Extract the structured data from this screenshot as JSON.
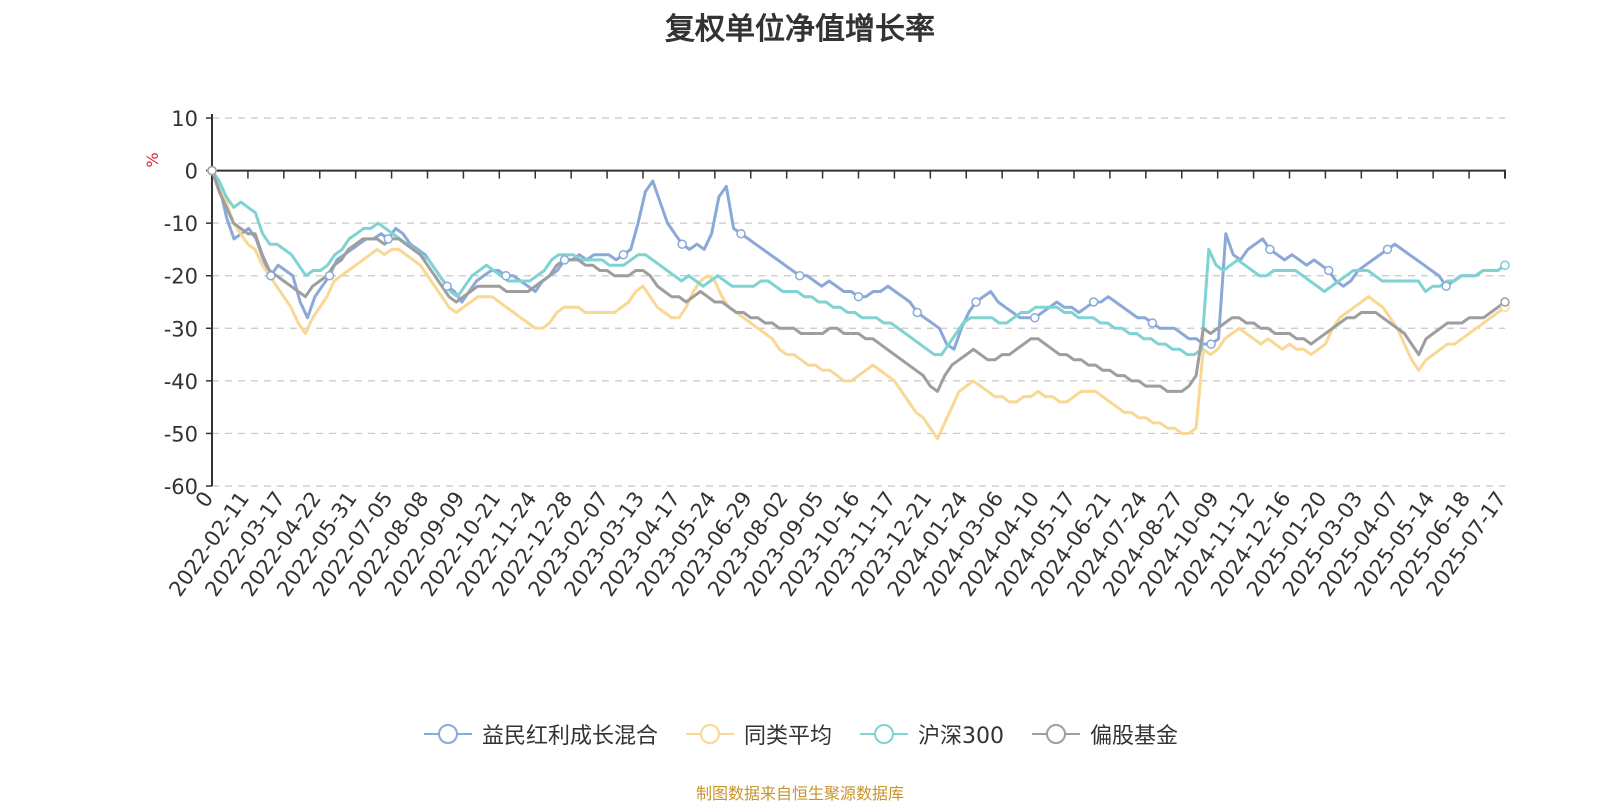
{
  "chart_data": {
    "type": "line",
    "title": "复权单位净值增长率",
    "ylabel": "%",
    "ylim": [
      -60,
      10
    ],
    "yticks": [
      10,
      0,
      -10,
      -20,
      -30,
      -40,
      -50,
      -60
    ],
    "x_origin_label": "0",
    "xticks": [
      "2022-02-11",
      "2022-03-17",
      "2022-04-22",
      "2022-05-31",
      "2022-07-05",
      "2022-08-08",
      "2022-09-09",
      "2022-10-21",
      "2022-11-24",
      "2022-12-28",
      "2023-02-07",
      "2023-03-13",
      "2023-04-17",
      "2023-05-24",
      "2023-06-29",
      "2023-08-02",
      "2023-09-05",
      "2023-10-16",
      "2023-11-17",
      "2023-12-21",
      "2024-01-24",
      "2024-03-06",
      "2024-04-10",
      "2024-05-17",
      "2024-06-21",
      "2024-07-24",
      "2024-08-27",
      "2024-10-09",
      "2024-11-12",
      "2024-12-16",
      "2025-01-20",
      "2025-03-03",
      "2025-04-07",
      "2025-05-14",
      "2025-06-18",
      "2025-07-17"
    ],
    "grid": true,
    "legend_position": "bottom",
    "series": [
      {
        "name": "益民红利成长混合",
        "color": "#8aa9d8",
        "values": [
          0,
          -3,
          -9,
          -13,
          -12,
          -11,
          -13,
          -17,
          -20,
          -18,
          -19,
          -20,
          -25,
          -28,
          -24,
          -22,
          -20,
          -17,
          -16,
          -15,
          -14,
          -13,
          -13,
          -12,
          -13,
          -11,
          -12,
          -14,
          -15,
          -16,
          -18,
          -20,
          -22,
          -23,
          -25,
          -23,
          -21,
          -20,
          -19,
          -19,
          -20,
          -20,
          -21,
          -22,
          -23,
          -21,
          -20,
          -19,
          -17,
          -17,
          -16,
          -17,
          -16,
          -16,
          -16,
          -17,
          -16,
          -15,
          -10,
          -4,
          -2,
          -6,
          -10,
          -12,
          -14,
          -15,
          -14,
          -15,
          -12,
          -5,
          -3,
          -11,
          -12,
          -13,
          -14,
          -15,
          -16,
          -17,
          -18,
          -19,
          -20,
          -20,
          -21,
          -22,
          -21,
          -22,
          -23,
          -23,
          -24,
          -24,
          -23,
          -23,
          -22,
          -23,
          -24,
          -25,
          -27,
          -28,
          -29,
          -30,
          -33,
          -34,
          -30,
          -27,
          -25,
          -24,
          -23,
          -25,
          -26,
          -27,
          -28,
          -28,
          -28,
          -27,
          -26,
          -25,
          -26,
          -26,
          -27,
          -26,
          -25,
          -25,
          -24,
          -25,
          -26,
          -27,
          -28,
          -28,
          -29,
          -30,
          -30,
          -30,
          -31,
          -32,
          -32,
          -33,
          -33,
          -32,
          -12,
          -16,
          -17,
          -15,
          -14,
          -13,
          -15,
          -16,
          -17,
          -16,
          -17,
          -18,
          -17,
          -18,
          -19,
          -21,
          -22,
          -21,
          -19,
          -18,
          -17,
          -16,
          -15,
          -14,
          -15,
          -16,
          -17,
          -18,
          -19,
          -20,
          -22,
          -21,
          -20,
          -20,
          -20,
          -19,
          -19,
          -19,
          -18
        ]
      },
      {
        "name": "同类平均",
        "color": "#f9d895",
        "values": [
          0,
          -2,
          -6,
          -10,
          -12,
          -14,
          -15,
          -18,
          -20,
          -22,
          -24,
          -26,
          -29,
          -31,
          -28,
          -26,
          -24,
          -21,
          -20,
          -19,
          -18,
          -17,
          -16,
          -15,
          -16,
          -15,
          -15,
          -16,
          -17,
          -18,
          -20,
          -22,
          -24,
          -26,
          -27,
          -26,
          -25,
          -24,
          -24,
          -24,
          -25,
          -26,
          -27,
          -28,
          -29,
          -30,
          -30,
          -29,
          -27,
          -26,
          -26,
          -26,
          -27,
          -27,
          -27,
          -27,
          -27,
          -26,
          -25,
          -23,
          -22,
          -24,
          -26,
          -27,
          -28,
          -28,
          -26,
          -23,
          -21,
          -20,
          -21,
          -24,
          -26,
          -27,
          -28,
          -29,
          -30,
          -31,
          -32,
          -34,
          -35,
          -35,
          -36,
          -37,
          -37,
          -38,
          -38,
          -39,
          -40,
          -40,
          -39,
          -38,
          -37,
          -38,
          -39,
          -40,
          -42,
          -44,
          -46,
          -47,
          -49,
          -51,
          -48,
          -45,
          -42,
          -41,
          -40,
          -41,
          -42,
          -43,
          -43,
          -44,
          -44,
          -43,
          -43,
          -42,
          -43,
          -43,
          -44,
          -44,
          -43,
          -42,
          -42,
          -42,
          -43,
          -44,
          -45,
          -46,
          -46,
          -47,
          -47,
          -48,
          -48,
          -49,
          -49,
          -50,
          -50,
          -49,
          -34,
          -35,
          -34,
          -32,
          -31,
          -30,
          -31,
          -32,
          -33,
          -32,
          -33,
          -34,
          -33,
          -34,
          -34,
          -35,
          -34,
          -33,
          -30,
          -28,
          -27,
          -26,
          -25,
          -24,
          -25,
          -26,
          -28,
          -30,
          -33,
          -36,
          -38,
          -36,
          -35,
          -34,
          -33,
          -33,
          -32,
          -31,
          -30,
          -29,
          -28,
          -27,
          -26
        ]
      },
      {
        "name": "沪深300",
        "color": "#7fd3d3",
        "values": [
          0,
          -2,
          -5,
          -7,
          -6,
          -7,
          -8,
          -12,
          -14,
          -14,
          -15,
          -16,
          -18,
          -20,
          -19,
          -19,
          -18,
          -16,
          -15,
          -13,
          -12,
          -11,
          -11,
          -10,
          -11,
          -12,
          -13,
          -14,
          -15,
          -16,
          -17,
          -19,
          -21,
          -23,
          -24,
          -22,
          -20,
          -19,
          -18,
          -19,
          -20,
          -21,
          -21,
          -21,
          -21,
          -20,
          -19,
          -17,
          -16,
          -16,
          -16,
          -17,
          -17,
          -17,
          -17,
          -18,
          -18,
          -18,
          -17,
          -16,
          -16,
          -17,
          -18,
          -19,
          -20,
          -21,
          -20,
          -21,
          -22,
          -21,
          -20,
          -21,
          -22,
          -22,
          -22,
          -22,
          -21,
          -21,
          -22,
          -23,
          -23,
          -23,
          -24,
          -24,
          -25,
          -25,
          -26,
          -26,
          -27,
          -27,
          -28,
          -28,
          -28,
          -29,
          -29,
          -30,
          -31,
          -32,
          -33,
          -34,
          -35,
          -35,
          -33,
          -31,
          -29,
          -28,
          -28,
          -28,
          -28,
          -29,
          -29,
          -28,
          -27,
          -27,
          -26,
          -26,
          -26,
          -26,
          -27,
          -27,
          -28,
          -28,
          -28,
          -29,
          -29,
          -30,
          -30,
          -31,
          -31,
          -32,
          -32,
          -33,
          -33,
          -34,
          -34,
          -35,
          -35,
          -34,
          -15,
          -18,
          -19,
          -18,
          -17,
          -18,
          -19,
          -20,
          -20,
          -19,
          -19,
          -19,
          -19,
          -20,
          -21,
          -22,
          -23,
          -22,
          -21,
          -20,
          -19,
          -19,
          -19,
          -20,
          -21,
          -21,
          -21,
          -21,
          -21,
          -21,
          -23,
          -22,
          -22,
          -21,
          -21,
          -20,
          -20,
          -20,
          -19,
          -19,
          -19,
          -18
        ]
      },
      {
        "name": "偏股基金",
        "color": "#9e9e9e",
        "values": [
          0,
          -4,
          -7,
          -10,
          -11,
          -12,
          -12,
          -16,
          -19,
          -20,
          -21,
          -22,
          -23,
          -24,
          -22,
          -21,
          -20,
          -18,
          -17,
          -15,
          -14,
          -13,
          -13,
          -13,
          -14,
          -13,
          -13,
          -14,
          -15,
          -16,
          -18,
          -20,
          -22,
          -24,
          -25,
          -24,
          -23,
          -22,
          -22,
          -22,
          -22,
          -23,
          -23,
          -23,
          -23,
          -22,
          -21,
          -20,
          -18,
          -17,
          -17,
          -17,
          -18,
          -18,
          -19,
          -19,
          -20,
          -20,
          -20,
          -19,
          -19,
          -20,
          -22,
          -23,
          -24,
          -24,
          -25,
          -24,
          -23,
          -24,
          -25,
          -25,
          -26,
          -27,
          -27,
          -28,
          -28,
          -29,
          -29,
          -30,
          -30,
          -30,
          -31,
          -31,
          -31,
          -31,
          -30,
          -30,
          -31,
          -31,
          -31,
          -32,
          -32,
          -33,
          -34,
          -35,
          -36,
          -37,
          -38,
          -39,
          -41,
          -42,
          -39,
          -37,
          -36,
          -35,
          -34,
          -35,
          -36,
          -36,
          -35,
          -35,
          -34,
          -33,
          -32,
          -32,
          -33,
          -34,
          -35,
          -35,
          -36,
          -36,
          -37,
          -37,
          -38,
          -38,
          -39,
          -39,
          -40,
          -40,
          -41,
          -41,
          -41,
          -42,
          -42,
          -42,
          -41,
          -39,
          -30,
          -31,
          -30,
          -29,
          -28,
          -28,
          -29,
          -29,
          -30,
          -30,
          -31,
          -31,
          -31,
          -32,
          -32,
          -33,
          -32,
          -31,
          -30,
          -29,
          -28,
          -28,
          -27,
          -27,
          -27,
          -28,
          -29,
          -30,
          -31,
          -33,
          -35,
          -32,
          -31,
          -30,
          -29,
          -29,
          -29,
          -28,
          -28,
          -28,
          -27,
          -26,
          -25
        ]
      }
    ]
  },
  "legend": {
    "items": [
      "益民红利成长混合",
      "同类平均",
      "沪深300",
      "偏股基金"
    ]
  },
  "footer": {
    "source": "制图数据来自恒生聚源数据库"
  }
}
